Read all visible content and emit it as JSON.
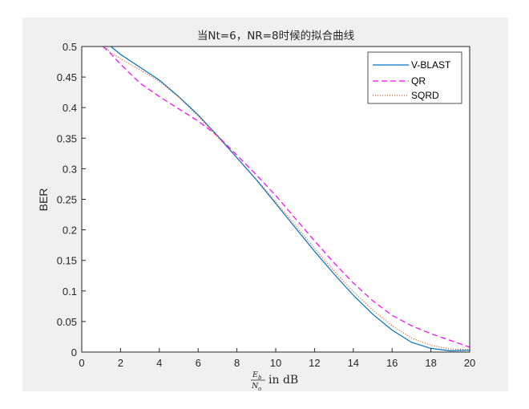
{
  "chart_data": {
    "type": "line",
    "title": "当Nt=6，NR=8时候的拟合曲线",
    "xlabel": {
      "fraction_numerator": "E",
      "numerator_sub": "b",
      "fraction_denominator": "N",
      "denominator_sub": "o",
      "suffix": "in dB"
    },
    "ylabel": "BER",
    "xlim": [
      0,
      20
    ],
    "ylim": [
      0,
      0.5
    ],
    "x_ticks": [
      "0",
      "2",
      "4",
      "6",
      "8",
      "10",
      "12",
      "14",
      "16",
      "18",
      "20"
    ],
    "y_ticks": [
      "0",
      "0.05",
      "0.1",
      "0.15",
      "0.2",
      "0.25",
      "0.3",
      "0.35",
      "0.4",
      "0.45",
      "0.5"
    ],
    "legend_position": "top-right",
    "grid": false,
    "series": [
      {
        "name": "V-BLAST",
        "color": "#0072bd",
        "style": "solid",
        "x": [
          1.5,
          2,
          3,
          4,
          5,
          6,
          7,
          8,
          9,
          10,
          11,
          12,
          13,
          14,
          15,
          16,
          17,
          18,
          19,
          20
        ],
        "y": [
          0.5,
          0.487,
          0.466,
          0.445,
          0.418,
          0.388,
          0.354,
          0.318,
          0.282,
          0.243,
          0.204,
          0.165,
          0.128,
          0.093,
          0.062,
          0.036,
          0.016,
          0.006,
          0.002,
          0.003
        ]
      },
      {
        "name": "QR",
        "color": "#ff00ff",
        "style": "dashed",
        "x": [
          1.1,
          1.5,
          2,
          3,
          4,
          5,
          6,
          7,
          8,
          9,
          10,
          11,
          12,
          13,
          14,
          15,
          16,
          17,
          18,
          19,
          20
        ],
        "y": [
          0.5,
          0.488,
          0.471,
          0.44,
          0.418,
          0.398,
          0.378,
          0.354,
          0.322,
          0.29,
          0.256,
          0.219,
          0.182,
          0.146,
          0.113,
          0.084,
          0.06,
          0.043,
          0.03,
          0.019,
          0.008
        ]
      },
      {
        "name": "SQRD",
        "color": "#d95319",
        "style": "dotted",
        "x": [
          1.2,
          1.5,
          2,
          3,
          4,
          5,
          6,
          7,
          8,
          9,
          10,
          11,
          12,
          13,
          14,
          15,
          16,
          17,
          18,
          19,
          20
        ],
        "y": [
          0.5,
          0.49,
          0.48,
          0.462,
          0.443,
          0.417,
          0.386,
          0.352,
          0.318,
          0.283,
          0.246,
          0.208,
          0.17,
          0.133,
          0.099,
          0.069,
          0.043,
          0.023,
          0.011,
          0.005,
          0.004
        ]
      }
    ]
  }
}
